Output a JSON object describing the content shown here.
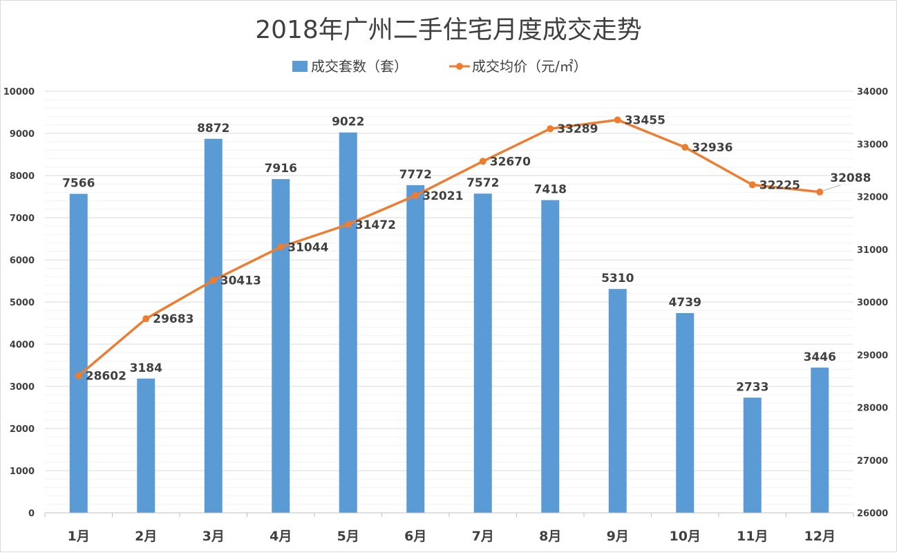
{
  "chart_data": {
    "type": "bar",
    "title": "2018年广州二手住宅月度成交走势",
    "legend_position": "top",
    "categories": [
      "1月",
      "2月",
      "3月",
      "4月",
      "5月",
      "6月",
      "7月",
      "8月",
      "9月",
      "10月",
      "11月",
      "12月"
    ],
    "series": [
      {
        "name": "成交套数（套）",
        "type": "bar",
        "axis": "left",
        "color": "#5B9BD5",
        "values": [
          7566,
          3184,
          8872,
          7916,
          9022,
          7772,
          7572,
          7418,
          5310,
          4739,
          2733,
          3446
        ]
      },
      {
        "name": "成交均价（元/㎡）",
        "type": "line",
        "axis": "right",
        "color": "#ED7D31",
        "values": [
          28602,
          29683,
          30413,
          31044,
          31472,
          32021,
          32670,
          33289,
          33455,
          32936,
          32225,
          32088
        ]
      }
    ],
    "left_axis": {
      "ylim": [
        0,
        10000
      ],
      "ticks": [
        0,
        1000,
        2000,
        3000,
        4000,
        5000,
        6000,
        7000,
        8000,
        9000,
        10000
      ]
    },
    "right_axis": {
      "ylim": [
        26000,
        34000
      ],
      "ticks": [
        26000,
        27000,
        28000,
        29000,
        30000,
        31000,
        32000,
        33000,
        34000
      ]
    },
    "grid": true
  }
}
